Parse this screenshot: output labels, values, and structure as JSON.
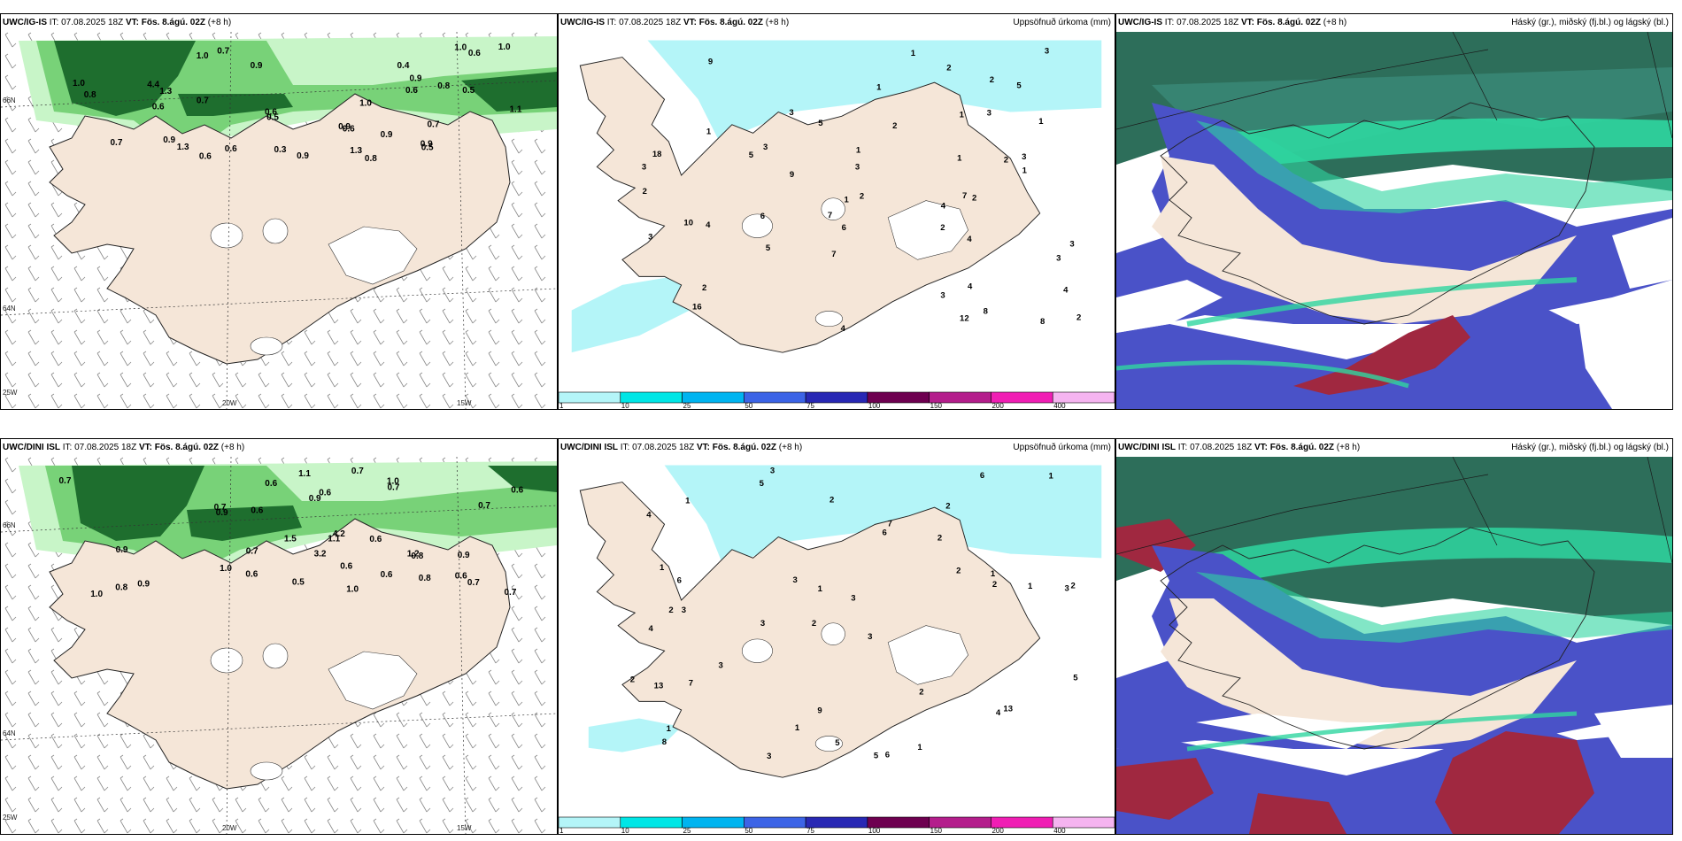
{
  "colors": {
    "land": "#f5e6d8",
    "ocean_bg": "#ffffff",
    "precip_light": "#c8f5c8",
    "precip_mid": "#78d278",
    "precip_dark": "#1e6e2e",
    "accum_light": "#b4f5f8",
    "cloud_high": "#2d6e5a",
    "cloud_mid": "#2fd6a0",
    "cloud_low": "#4a52c8",
    "cloud_red": "#a02840"
  },
  "panels": {
    "top_left": {
      "model": "UWC/IG-IS",
      "it": "IT: 07.08.2025 18Z",
      "vt": "VT: Fös. 8.ágú. 02Z",
      "lead": "(+8 h)",
      "right": ""
    },
    "top_mid": {
      "model": "UWC/IG-IS",
      "it": "IT: 07.08.2025 18Z",
      "vt": "VT: Fös. 8.ágú. 02Z",
      "lead": "(+8 h)",
      "right": "Uppsöfnuð úrkoma (mm)"
    },
    "top_right": {
      "model": "UWC/IG-IS",
      "it": "IT: 07.08.2025 18Z",
      "vt": "VT: Fös. 8.ágú. 02Z",
      "lead": "(+8 h)",
      "right": "Háský (gr.), miðský (fj.bl.) og lágský (bl.)"
    },
    "bot_left": {
      "model": "UWC/DINI ISL",
      "it": "IT: 07.08.2025 18Z",
      "vt": "VT: Fös. 8.ágú. 02Z",
      "lead": "(+8 h)",
      "right": ""
    },
    "bot_mid": {
      "model": "UWC/DINI ISL",
      "it": "IT: 07.08.2025 18Z",
      "vt": "VT: Fös. 8.ágú. 02Z",
      "lead": "(+8 h)",
      "right": "Uppsöfnuð úrkoma (mm)"
    },
    "bot_right": {
      "model": "UWC/DINI ISL",
      "it": "IT: 07.08.2025 18Z",
      "vt": "VT: Fös. 8.ágú. 02Z",
      "lead": "(+8 h)",
      "right": "Háský (gr.), miðský (fj.bl.) og lágský (bl.)"
    }
  },
  "grid_labels": {
    "lon20": "20W",
    "lon15": "15W",
    "lon25": "25W",
    "lat66": "66N",
    "lat64": "64N"
  },
  "legend": {
    "ticks": [
      "1",
      "10",
      "25",
      "50",
      "75",
      "100",
      "150",
      "200",
      "400"
    ],
    "colors": [
      "#b4f5f8",
      "#00e6e6",
      "#00b4f0",
      "#3c64e6",
      "#2828b4",
      "#6e0050",
      "#b41e8c",
      "#f01eb4",
      "#f5b4f0"
    ]
  },
  "values": {
    "tl": [
      "0.8",
      "1.0",
      "0.9",
      "4.4",
      "0.8",
      "1.3",
      "1.1",
      "0.7",
      "0.5",
      "1.3",
      "0.7",
      "1.0",
      "0.6",
      "0.9",
      "0.6",
      "1.0",
      "0.8",
      "0.6",
      "0.7",
      "0.5",
      "0.9",
      "0.6",
      "0.6",
      "0.5",
      "1.0",
      "0.9",
      "0.6",
      "1.3",
      "0.9",
      "0.9",
      "0.9",
      "1.0",
      "0.4",
      "0.6",
      "0.7",
      "0.3"
    ],
    "tm": [
      "2",
      "3",
      "2",
      "3",
      "3",
      "3",
      "3",
      "1",
      "4",
      "8",
      "7",
      "4",
      "3",
      "4",
      "5",
      "8",
      "5",
      "10",
      "2",
      "5",
      "6",
      "2",
      "1",
      "2",
      "1",
      "2",
      "1",
      "1",
      "2",
      "4",
      "1",
      "1",
      "18",
      "4",
      "9",
      "16",
      "2",
      "2",
      "2",
      "12",
      "7",
      "6",
      "1",
      "4",
      "3",
      "3",
      "3",
      "3",
      "1",
      "9",
      "7",
      "5",
      "3"
    ],
    "bl": [
      "0.8",
      "0.9",
      "4.2",
      "3.2",
      "0.6",
      "0.7",
      "0.6",
      "1.0",
      "0.8",
      "1.0",
      "0.7",
      "0.9",
      "0.6",
      "1.1",
      "0.6",
      "0.7",
      "1.2",
      "0.9",
      "1.5",
      "0.6",
      "0.7",
      "0.9",
      "0.5",
      "0.6",
      "0.8",
      "0.7",
      "0.6",
      "0.9",
      "0.7",
      "0.6",
      "0.7",
      "0.7",
      "0.6",
      "1.0",
      "1.1",
      "1.0"
    ],
    "bm": [
      "3",
      "2",
      "3",
      "2",
      "3",
      "3",
      "4",
      "2",
      "4",
      "6",
      "3",
      "8",
      "5",
      "3",
      "5",
      "6",
      "9",
      "6",
      "2",
      "3",
      "6",
      "2",
      "2",
      "1",
      "2",
      "1",
      "1",
      "2",
      "13",
      "13",
      "4",
      "7",
      "7",
      "3",
      "2",
      "5",
      "1",
      "1",
      "1",
      "2",
      "1",
      "3",
      "1",
      "1",
      "5"
    ]
  }
}
